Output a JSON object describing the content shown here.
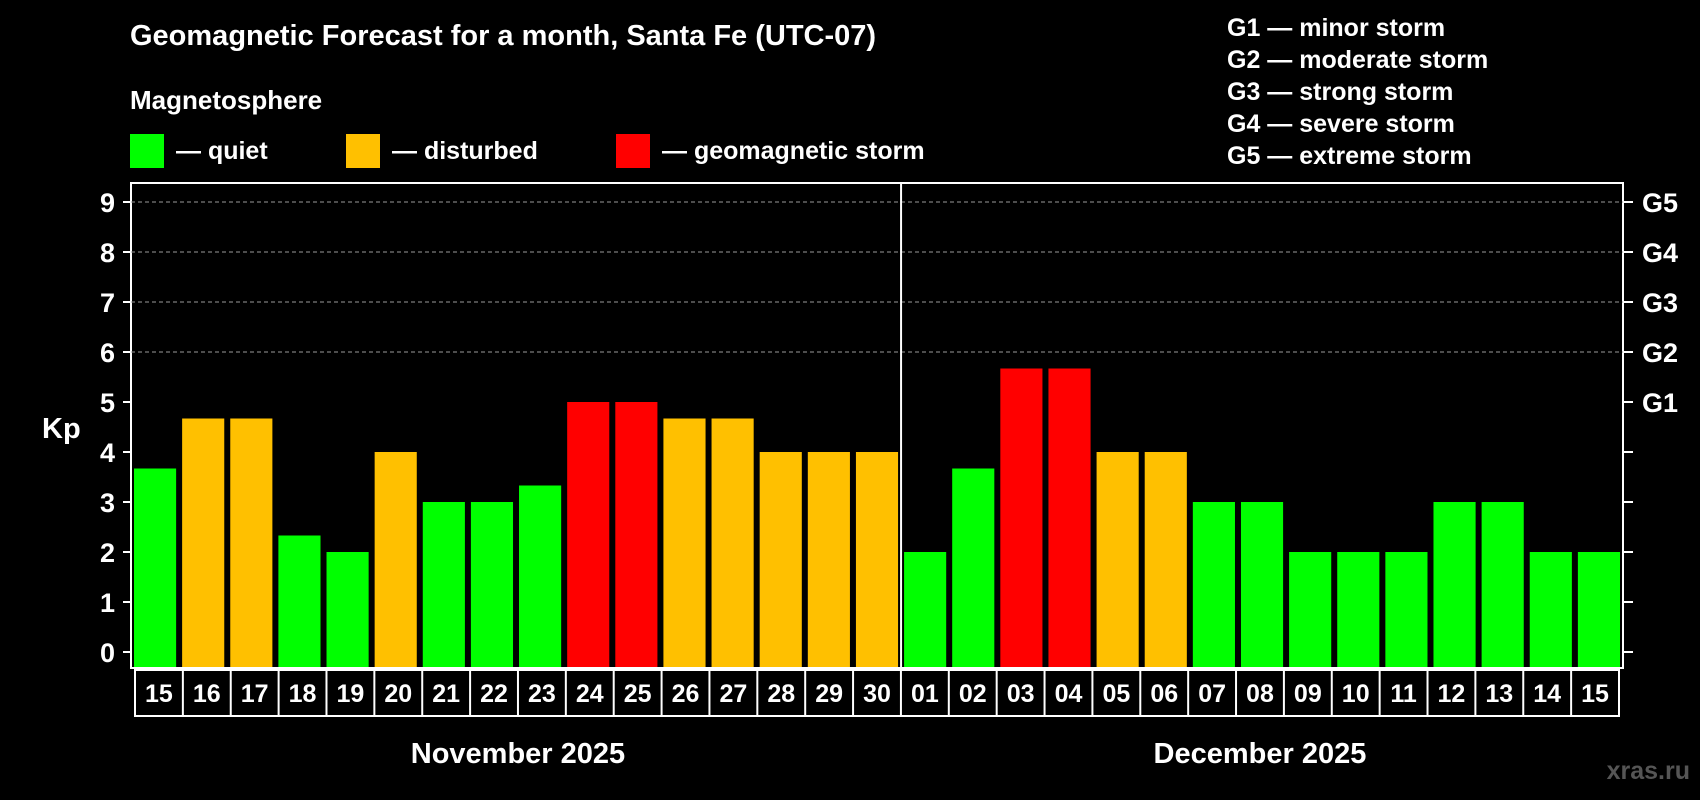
{
  "header": {
    "title": "Geomagnetic Forecast for a month, Santa Fe (UTC-07)",
    "subtitle": "Magnetosphere"
  },
  "legend": [
    {
      "label": "— quiet",
      "color": "#00ff00"
    },
    {
      "label": "— disturbed",
      "color": "#ffc000"
    },
    {
      "label": "— geomagnetic storm",
      "color": "#ff0000"
    }
  ],
  "storm_levels": [
    "G1 — minor storm",
    "G2 — moderate storm",
    "G3 — strong storm",
    "G4 — severe storm",
    "G5 — extreme storm"
  ],
  "watermark": "xras.ru",
  "chart_data": {
    "type": "bar",
    "title": "Geomagnetic Forecast for a month, Santa Fe (UTC-07)",
    "ylabel": "Kp",
    "ylim": [
      0,
      9
    ],
    "yticks": [
      "0",
      "1",
      "2",
      "3",
      "4",
      "5",
      "6",
      "7",
      "8",
      "9"
    ],
    "right_axis_labels": [
      {
        "kp": 5,
        "label": "G1"
      },
      {
        "kp": 6,
        "label": "G2"
      },
      {
        "kp": 7,
        "label": "G3"
      },
      {
        "kp": 8,
        "label": "G4"
      },
      {
        "kp": 9,
        "label": "G5"
      }
    ],
    "gridlines": [
      6,
      7,
      8,
      9
    ],
    "categories": [
      "15",
      "16",
      "17",
      "18",
      "19",
      "20",
      "21",
      "22",
      "23",
      "24",
      "25",
      "26",
      "27",
      "28",
      "29",
      "30",
      "01",
      "02",
      "03",
      "04",
      "05",
      "06",
      "07",
      "08",
      "09",
      "10",
      "11",
      "12",
      "13",
      "14",
      "15"
    ],
    "values": [
      3.67,
      4.67,
      4.67,
      2.33,
      2.0,
      4.0,
      3.0,
      3.0,
      3.33,
      5.0,
      5.0,
      4.67,
      4.67,
      4.0,
      4.0,
      4.0,
      2.0,
      3.67,
      5.67,
      5.67,
      4.0,
      4.0,
      3.0,
      3.0,
      2.0,
      2.0,
      2.0,
      3.0,
      3.0,
      2.0,
      2.0
    ],
    "levels": [
      "quiet",
      "disturbed",
      "disturbed",
      "quiet",
      "quiet",
      "disturbed",
      "quiet",
      "quiet",
      "quiet",
      "storm",
      "storm",
      "disturbed",
      "disturbed",
      "disturbed",
      "disturbed",
      "disturbed",
      "quiet",
      "quiet",
      "storm",
      "storm",
      "disturbed",
      "disturbed",
      "quiet",
      "quiet",
      "quiet",
      "quiet",
      "quiet",
      "quiet",
      "quiet",
      "quiet",
      "quiet"
    ],
    "colors": {
      "quiet": "#00ff00",
      "disturbed": "#ffc000",
      "storm": "#ff0000"
    },
    "months": [
      {
        "label": "November 2025",
        "days": 16
      },
      {
        "label": "December 2025",
        "days": 15
      }
    ]
  }
}
